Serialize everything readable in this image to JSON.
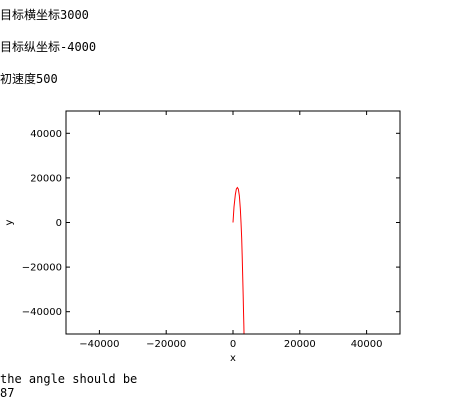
{
  "inputs": {
    "target_x_line": "目标横坐标3000",
    "target_y_line": "目标纵坐标-4000",
    "initial_speed_line": "初速度500"
  },
  "output": {
    "label": "the angle should be",
    "value": "87"
  },
  "colors": {
    "curve": "#ff0000",
    "axes": "#000000"
  },
  "chart_data": {
    "type": "line",
    "xlabel": "x",
    "ylabel": "y",
    "xlim": [
      -50000,
      50000
    ],
    "ylim": [
      -50000,
      50000
    ],
    "xticks": [
      -40000,
      -20000,
      0,
      20000,
      40000
    ],
    "yticks": [
      -40000,
      -20000,
      0,
      20000,
      40000
    ],
    "xtick_labels": [
      "−40000",
      "−20000",
      "0",
      "20000",
      "40000"
    ],
    "ytick_labels": [
      "−40000",
      "−20000",
      "0",
      "20000",
      "40000"
    ],
    "grid": false,
    "series": [
      {
        "x": [
          0,
          300,
          700,
          1000,
          1300,
          1600,
          1900,
          2200,
          2400,
          2600,
          2750,
          2900,
          3050,
          3150,
          3250,
          3300
        ],
        "y": [
          0,
          7000,
          12500,
          15000,
          15700,
          15000,
          12000,
          6000,
          0,
          -7000,
          -15000,
          -24000,
          -33000,
          -40000,
          -46000,
          -50000
        ]
      }
    ]
  }
}
